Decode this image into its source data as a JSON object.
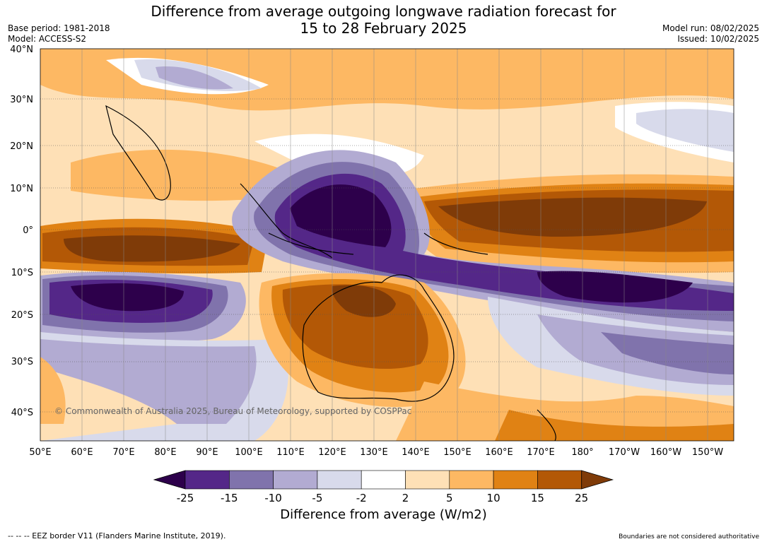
{
  "title_line1": "Difference from average outgoing longwave radiation forecast for",
  "title_line2": "15 to 28 February 2025",
  "base_period": "Base period: 1981-2018",
  "model": "Model: ACCESS-S2",
  "model_run": "Model run: 08/02/2025",
  "issued": "Issued: 10/02/2025",
  "copyright": "© Commonwealth of Australia 2025, Bureau of Meteorology, supported by COSPPac",
  "lat_labels": [
    "40°N",
    "30°N",
    "20°N",
    "10°N",
    "0°",
    "10°S",
    "20°S",
    "30°S",
    "40°S"
  ],
  "lon_labels": [
    "50°E",
    "60°E",
    "70°E",
    "80°E",
    "90°E",
    "100°E",
    "110°E",
    "120°E",
    "130°E",
    "140°E",
    "150°E",
    "160°E",
    "170°E",
    "180°",
    "170°W",
    "160°W",
    "150°W"
  ],
  "colorbar": {
    "title": "Difference from average (W/m2)",
    "ticks": [
      "-25",
      "-15",
      "-10",
      "-5",
      "-2",
      "2",
      "5",
      "10",
      "15",
      "25"
    ],
    "colors": [
      "#2d004b",
      "#542788",
      "#8073ac",
      "#b2abd2",
      "#d8daeb",
      "#ffffff",
      "#fee0b6",
      "#fdb863",
      "#e08214",
      "#b35806",
      "#7f3b08"
    ]
  },
  "footer_left": "--  --  -- EEZ border V11 (Flanders Marine Institute, 2019).",
  "footer_right": "Boundaries are not considered authoritative"
}
